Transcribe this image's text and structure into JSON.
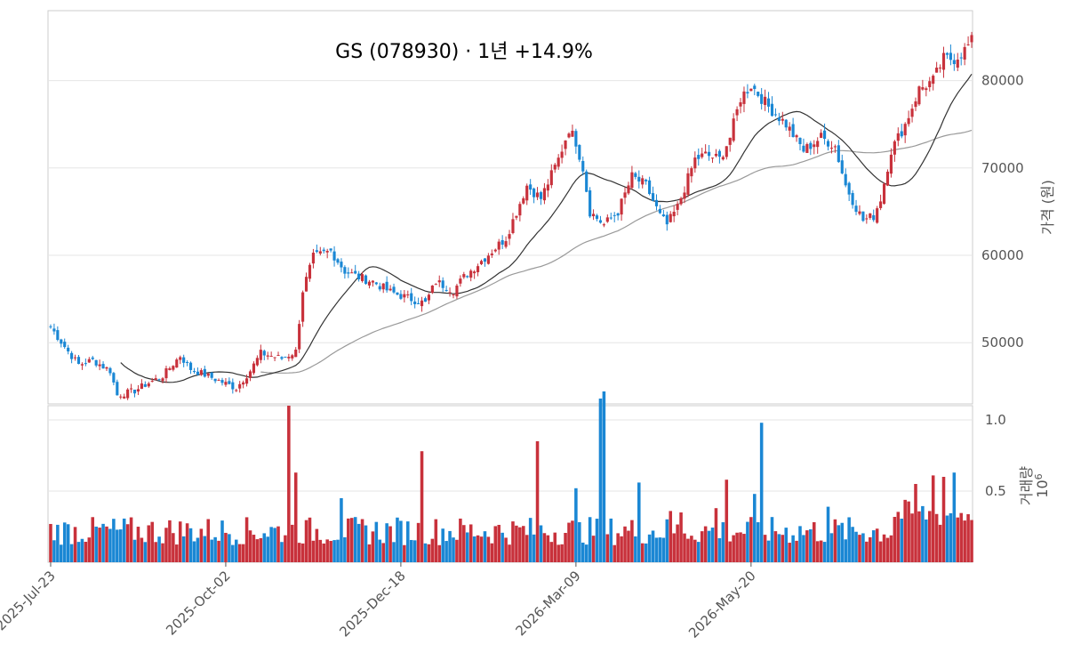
{
  "chart_data": {
    "type": "candlestick",
    "title": "GS (078930)  ·  1년 +14.9%",
    "price_axis": {
      "label": "가격 (원)",
      "ticks": [
        50000,
        60000,
        70000,
        80000
      ],
      "range": [
        43000,
        88000
      ]
    },
    "volume_axis": {
      "label": "거래량",
      "exponent": "10",
      "exponent_power": "6",
      "ticks": [
        0.5,
        1.0
      ],
      "tick_labels": [
        "0.5",
        "1.0"
      ],
      "range": [
        0,
        1.1
      ],
      "scale": 1000000
    },
    "x_ticks": [
      "2025-Jul-23",
      "2025-Oct-02",
      "2025-Dec-18",
      "2026-Mar-09",
      "2026-May-20"
    ],
    "x_tick_index": [
      0,
      50,
      100,
      150,
      200
    ],
    "moving_averages": [
      "MA20",
      "MA60"
    ],
    "colors": {
      "up": "#c8313b",
      "down": "#1a87d4",
      "ma_short": "#333333",
      "ma_long": "#999999",
      "grid": "#e6e6e6",
      "frame": "#cccccc"
    },
    "anchors": [
      [
        0,
        51800
      ],
      [
        5,
        49000
      ],
      [
        8,
        47500
      ],
      [
        12,
        48000
      ],
      [
        17,
        46800
      ],
      [
        19,
        44000
      ],
      [
        24,
        44500
      ],
      [
        27,
        45200
      ],
      [
        32,
        46200
      ],
      [
        37,
        48500
      ],
      [
        40,
        47000
      ],
      [
        46,
        46000
      ],
      [
        53,
        44800
      ],
      [
        57,
        46800
      ],
      [
        60,
        48800
      ],
      [
        66,
        48200
      ],
      [
        70,
        49000
      ],
      [
        72,
        56000
      ],
      [
        75,
        59800
      ],
      [
        80,
        60500
      ],
      [
        84,
        58200
      ],
      [
        88,
        57500
      ],
      [
        92,
        57000
      ],
      [
        97,
        55800
      ],
      [
        103,
        55000
      ],
      [
        107,
        54500
      ],
      [
        110,
        57000
      ],
      [
        115,
        56000
      ],
      [
        118,
        57500
      ],
      [
        122,
        59000
      ],
      [
        126,
        60500
      ],
      [
        130,
        62000
      ],
      [
        136,
        68000
      ],
      [
        140,
        66500
      ],
      [
        145,
        71000
      ],
      [
        148,
        74500
      ],
      [
        150,
        73000
      ],
      [
        152,
        70000
      ],
      [
        154,
        65000
      ],
      [
        158,
        63500
      ],
      [
        162,
        65000
      ],
      [
        166,
        69000
      ],
      [
        170,
        68000
      ],
      [
        174,
        64500
      ],
      [
        176,
        63500
      ],
      [
        179,
        65500
      ],
      [
        184,
        71000
      ],
      [
        187,
        71500
      ],
      [
        191,
        71000
      ],
      [
        194,
        73500
      ],
      [
        197,
        78000
      ],
      [
        200,
        79500
      ],
      [
        205,
        77000
      ],
      [
        210,
        75000
      ],
      [
        215,
        72000
      ],
      [
        220,
        73500
      ],
      [
        224,
        72500
      ],
      [
        227,
        68000
      ],
      [
        230,
        65500
      ],
      [
        232,
        64000
      ],
      [
        235,
        64500
      ],
      [
        237,
        66500
      ],
      [
        240,
        72000
      ],
      [
        244,
        75000
      ],
      [
        248,
        79000
      ],
      [
        252,
        80000
      ],
      [
        255,
        82500
      ],
      [
        258,
        82500
      ],
      [
        261,
        83500
      ],
      [
        263,
        84500
      ]
    ],
    "volume_spikes": [
      [
        68,
        1.1
      ],
      [
        70,
        0.63
      ],
      [
        83,
        0.45
      ],
      [
        106,
        0.78
      ],
      [
        139,
        0.85
      ],
      [
        150,
        0.52
      ],
      [
        157,
        1.15
      ],
      [
        158,
        1.2
      ],
      [
        168,
        0.56
      ],
      [
        177,
        0.36
      ],
      [
        180,
        0.35
      ],
      [
        190,
        0.38
      ],
      [
        193,
        0.58
      ],
      [
        201,
        0.48
      ],
      [
        203,
        0.98
      ],
      [
        222,
        0.39
      ],
      [
        247,
        0.55
      ],
      [
        252,
        0.61
      ],
      [
        255,
        0.6
      ],
      [
        258,
        0.63
      ]
    ]
  }
}
